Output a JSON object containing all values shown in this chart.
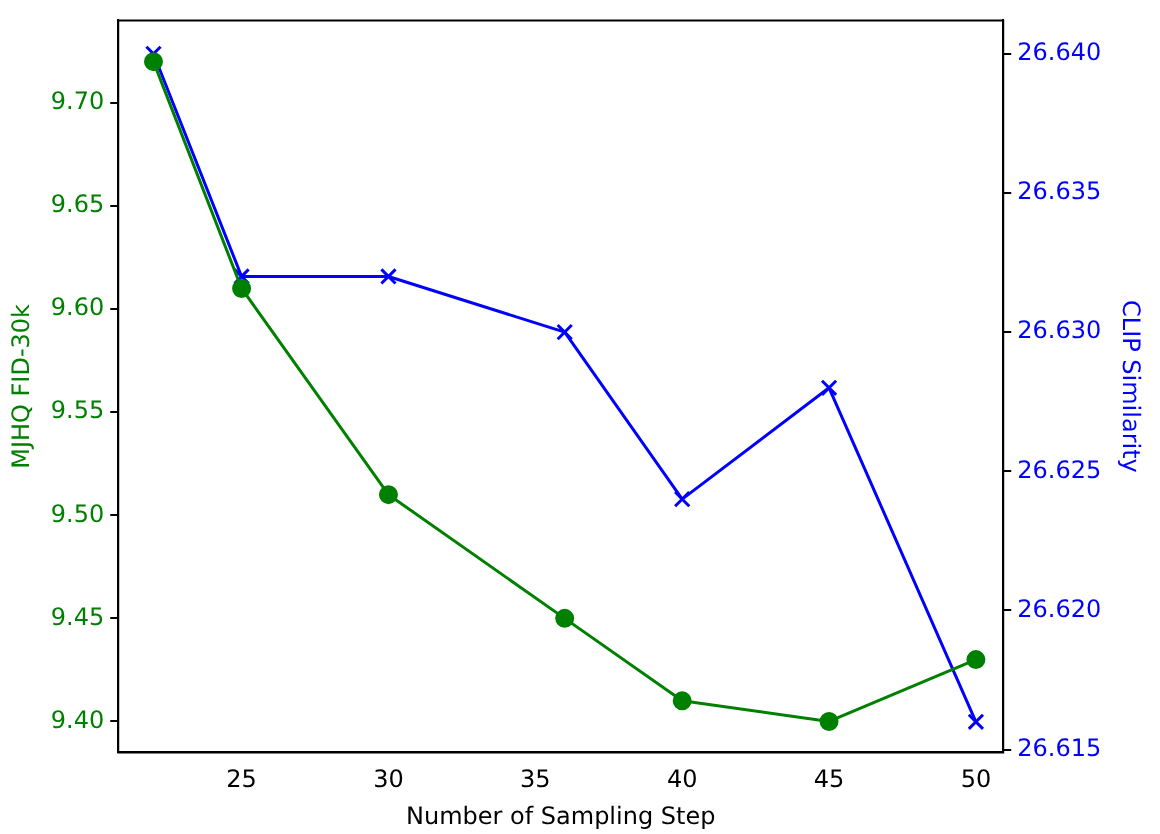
{
  "chart_data": {
    "type": "line",
    "xlabel": "Number of Sampling Step",
    "ylabel": "MJHQ FID-30k",
    "y2label": "CLIP Similarity",
    "x": [
      22,
      25,
      30,
      36,
      40,
      45,
      50
    ],
    "xlim": [
      20.8,
      50.93
    ],
    "xticks": [
      25,
      30,
      35,
      40,
      45,
      50
    ],
    "ylim": [
      9.385,
      9.74
    ],
    "yticks": [
      {
        "value": 9.4,
        "label": "9.40"
      },
      9.45,
      {
        "value": 9.5,
        "label": "9.50"
      },
      9.55,
      {
        "value": 9.6,
        "label": "9.60"
      },
      9.65,
      {
        "value": 9.7,
        "label": "9.70"
      }
    ],
    "y2lim": [
      26.6149,
      26.6412
    ],
    "y2ticks": [
      26.615,
      {
        "value": 26.62,
        "label": "26.620"
      },
      26.625,
      {
        "value": 26.63,
        "label": "26.630"
      },
      26.635,
      {
        "value": 26.64,
        "label": "26.640"
      }
    ],
    "grid": false,
    "legend": false,
    "line_style": "solid",
    "series": [
      {
        "color": "#008000",
        "marker": "circle",
        "values": [
          9.72,
          9.61,
          9.51,
          9.45,
          9.41,
          9.4,
          9.43
        ]
      },
      {
        "color": "#0000ff",
        "marker": "cross",
        "axis": "y2",
        "values": [
          26.64,
          26.632,
          26.632,
          26.63,
          26.624,
          26.628,
          26.616
        ]
      }
    ]
  }
}
